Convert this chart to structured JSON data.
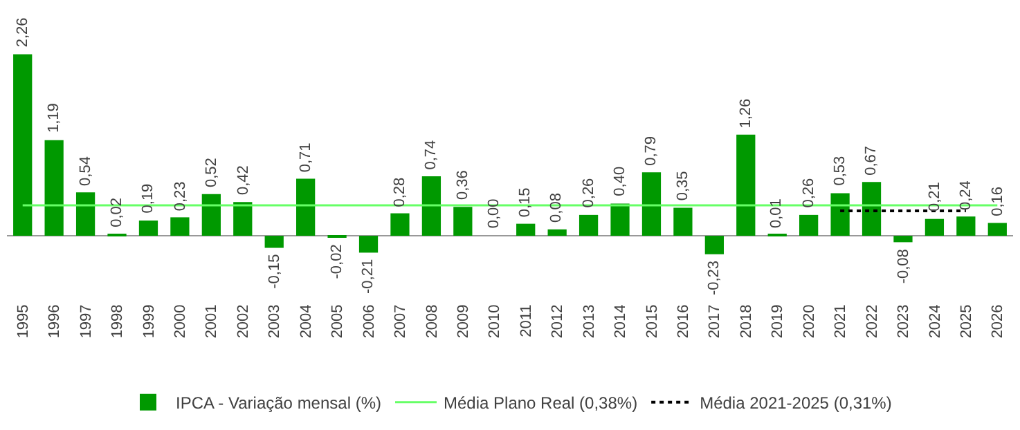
{
  "chart_data": {
    "type": "bar",
    "categories": [
      "1995",
      "1996",
      "1997",
      "1998",
      "1999",
      "2000",
      "2001",
      "2002",
      "2003",
      "2004",
      "2005",
      "2006",
      "2007",
      "2008",
      "2009",
      "2010",
      "2011",
      "2012",
      "2013",
      "2014",
      "2015",
      "2016",
      "2017",
      "2018",
      "2019",
      "2020",
      "2021",
      "2022",
      "2023",
      "2024",
      "2025",
      "2026"
    ],
    "series": [
      {
        "name": "IPCA - Variação mensal (%)",
        "color": "#009900",
        "values": [
          2.26,
          1.19,
          0.54,
          0.02,
          0.19,
          0.23,
          0.52,
          0.42,
          -0.15,
          0.71,
          -0.02,
          -0.21,
          0.28,
          0.74,
          0.36,
          0.0,
          0.15,
          0.08,
          0.26,
          0.4,
          0.79,
          0.35,
          -0.23,
          1.26,
          0.01,
          0.26,
          0.53,
          0.67,
          -0.08,
          0.21,
          0.24,
          0.16
        ],
        "value_labels": [
          "2,26",
          "1,19",
          "0,54",
          "0,02",
          "0,19",
          "0,23",
          "0,52",
          "0,42",
          "-0,15",
          "0,71",
          "-0,02",
          "-0,21",
          "0,28",
          "0,74",
          "0,36",
          "0,00",
          "0,15",
          "0,08",
          "0,26",
          "0,40",
          "0,79",
          "0,35",
          "-0,23",
          "1,26",
          "0,01",
          "0,26",
          "0,53",
          "0,67",
          "-0,08",
          "0,21",
          "0,24",
          "0,16"
        ]
      },
      {
        "name": "Média Plano Real (0,38%)",
        "type": "line",
        "color": "#66ff66",
        "line_style": "solid",
        "values": [
          0.38,
          0.38,
          0.38,
          0.38,
          0.38,
          0.38,
          0.38,
          0.38,
          0.38,
          0.38,
          0.38,
          0.38,
          0.38,
          0.38,
          0.38,
          0.38,
          0.38,
          0.38,
          0.38,
          0.38,
          0.38,
          0.38,
          0.38,
          0.38,
          0.38,
          0.38,
          0.38,
          0.38,
          0.38,
          0.38,
          0.38,
          0.38
        ]
      },
      {
        "name": "Média 2021-2025 (0,31%)",
        "type": "line",
        "color": "#000000",
        "line_style": "dotted",
        "values": [
          null,
          null,
          null,
          null,
          null,
          null,
          null,
          null,
          null,
          null,
          null,
          null,
          null,
          null,
          null,
          null,
          null,
          null,
          null,
          null,
          null,
          null,
          null,
          null,
          null,
          null,
          0.31,
          0.31,
          0.31,
          0.31,
          0.31,
          null
        ]
      }
    ],
    "legend": "bottom",
    "grid": false,
    "marker": "none"
  }
}
